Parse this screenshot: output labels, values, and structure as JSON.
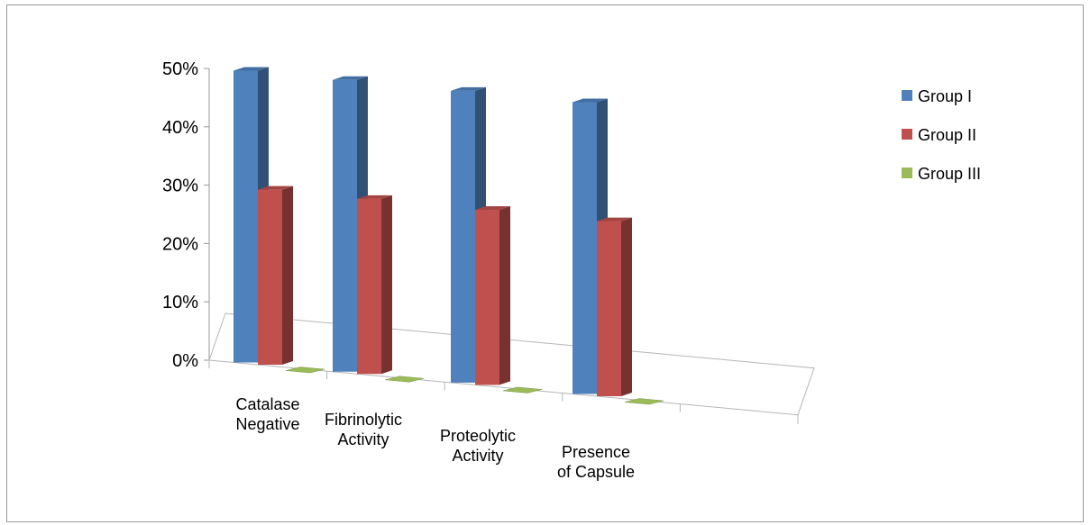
{
  "chart_data": {
    "type": "bar",
    "three_d": true,
    "categories": [
      [
        "Catalase",
        "Negative"
      ],
      [
        "Fibrinolytic",
        "Activity"
      ],
      [
        "Proteolytic",
        "Activity"
      ],
      [
        "Presence",
        "of Capsule"
      ]
    ],
    "series": [
      {
        "name": "Group I",
        "values": [
          50,
          50,
          50,
          50
        ],
        "color": "#4f81bd"
      },
      {
        "name": "Group II",
        "values": [
          30,
          30,
          30,
          30
        ],
        "color": "#c0504d"
      },
      {
        "name": "Group III",
        "values": [
          0,
          0,
          0,
          0
        ],
        "color": "#9bbb59"
      }
    ],
    "yticks": [
      "0%",
      "10%",
      "20%",
      "30%",
      "40%",
      "50%"
    ],
    "ylim": [
      0,
      50
    ],
    "title": "",
    "xlabel": "",
    "ylabel": "",
    "grid": false,
    "legend": "right"
  }
}
